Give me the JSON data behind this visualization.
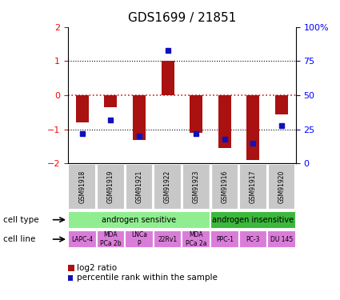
{
  "title": "GDS1699 / 21851",
  "samples": [
    "GSM91918",
    "GSM91919",
    "GSM91921",
    "GSM91922",
    "GSM91923",
    "GSM91916",
    "GSM91917",
    "GSM91920"
  ],
  "log2_ratio": [
    -0.8,
    -0.35,
    -1.3,
    1.0,
    -1.1,
    -1.55,
    -1.9,
    -0.55
  ],
  "percentile_rank_pct": [
    22,
    32,
    20,
    83,
    22,
    18,
    15,
    28
  ],
  "cell_type_groups": [
    {
      "label": "androgen sensitive",
      "start": 0,
      "end": 5,
      "color": "#90ee90"
    },
    {
      "label": "androgen insensitive",
      "start": 5,
      "end": 8,
      "color": "#3cb83c"
    }
  ],
  "cell_lines": [
    {
      "label": "LAPC-4",
      "start": 0,
      "end": 1
    },
    {
      "label": "MDA\nPCa 2b",
      "start": 1,
      "end": 2
    },
    {
      "label": "LNCa\nP",
      "start": 2,
      "end": 3
    },
    {
      "label": "22Rv1",
      "start": 3,
      "end": 4
    },
    {
      "label": "MDA\nPCa 2a",
      "start": 4,
      "end": 5
    },
    {
      "label": "PPC-1",
      "start": 5,
      "end": 6
    },
    {
      "label": "PC-3",
      "start": 6,
      "end": 7
    },
    {
      "label": "DU 145",
      "start": 7,
      "end": 8
    }
  ],
  "cell_line_color": "#da7dda",
  "sample_label_bg": "#c8c8c8",
  "ylim": [
    -2,
    2
  ],
  "yticks_left": [
    -2,
    -1,
    0,
    1,
    2
  ],
  "yticks_right": [
    0,
    25,
    50,
    75,
    100
  ],
  "bar_color": "#aa1111",
  "dot_color": "#1111bb",
  "hline_color": "#cc2222",
  "dotline_color": "black",
  "bar_width": 0.45
}
